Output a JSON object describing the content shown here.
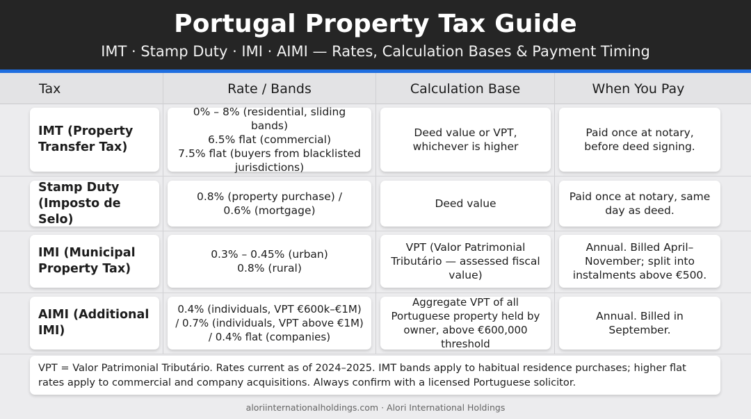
{
  "header": {
    "title": "Portugal Property Tax Guide",
    "subtitle": "IMT · Stamp Duty · IMI · AIMI — Rates, Calculation Bases & Payment Timing"
  },
  "columns": [
    "Tax",
    "Rate / Bands",
    "Calculation Base",
    "When You Pay"
  ],
  "rows": [
    {
      "tax": "IMT (Property Transfer Tax)",
      "rate": "0% – 8% (residential, sliding bands)\n6.5% flat (commercial)\n7.5% flat (buyers from blacklisted jurisdictions)",
      "base": "Deed value or VPT, whichever is higher",
      "when": "Paid once at notary, before deed signing."
    },
    {
      "tax": "Stamp Duty (Imposto de Selo)",
      "rate": "0.8% (property purchase) / 0.6% (mortgage)",
      "base": "Deed value",
      "when": "Paid once at notary, same day as deed."
    },
    {
      "tax": "IMI (Municipal Property Tax)",
      "rate": "0.3% – 0.45% (urban)\n0.8% (rural)",
      "base": "VPT (Valor Patrimonial Tributário — assessed fiscal value)",
      "when": "Annual. Billed April–November; split into instalments above €500."
    },
    {
      "tax": "AIMI (Additional IMI)",
      "rate": "0.4% (individuals, VPT €600k–€1M) / 0.7% (individuals, VPT above €1M) / 0.4% flat (companies)",
      "base": "Aggregate VPT of all Portuguese property held by owner, above €600,000 threshold",
      "when": "Annual. Billed in September."
    }
  ],
  "note": "VPT = Valor Patrimonial Tributário. Rates current as of 2024–2025. IMT bands apply to habitual residence purchases; higher flat rates apply to commercial and company acquisitions. Always confirm with a licensed Portuguese solicitor.",
  "footer": "aloriinternationalholdings.com · Alori International Holdings",
  "colors": {
    "header_bg": "#252525",
    "accent": "#1f6ee0",
    "page_bg": "#ececee",
    "card_bg": "#ffffff"
  }
}
